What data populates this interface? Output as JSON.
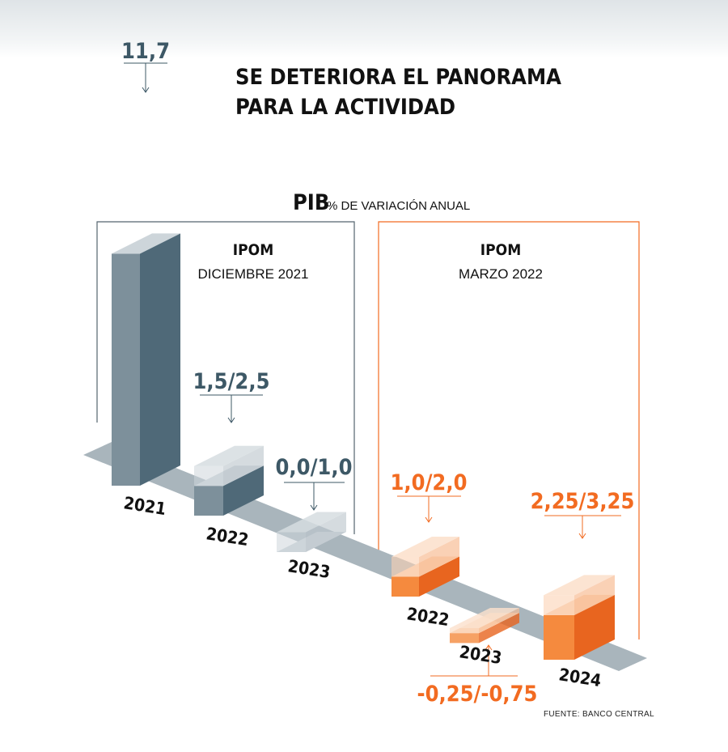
{
  "title_line1": "SE DETERIORA EL PANORAMA",
  "title_line2": "PARA LA ACTIVIDAD",
  "pib_label": "PIB",
  "pib_subtitle": "% DE VARIACIÓN ANUAL",
  "panels": [
    {
      "title": "IPOM",
      "subtitle": "DICIEMBRE 2021",
      "color": "#5a7280"
    },
    {
      "title": "IPOM",
      "subtitle": "MARZO 2022",
      "color": "#f26b21"
    }
  ],
  "source": "FUENTE: BANCO CENTRAL",
  "colors": {
    "grey_dark": "#4f6978",
    "grey_mid": "#7d909b",
    "grey_light": "#cdd5da",
    "orange_dark": "#e8651f",
    "orange_mid": "#f58a3e",
    "orange_light": "#fbd2b4",
    "road": "#a9b5bc",
    "label_grey": "#3d5866",
    "label_orange": "#f26b21"
  },
  "chart_data": {
    "type": "bar",
    "title": "SE DETERIORA EL PANORAMA PARA LA ACTIVIDAD",
    "ylabel": "PIB % DE VARIACIÓN ANUAL",
    "categories": [
      "2021",
      "2022",
      "2023",
      "2022",
      "2023",
      "2024"
    ],
    "bars": [
      {
        "year": "2021",
        "group": "IPOM DICIEMBRE 2021",
        "low": 11.7,
        "high": 11.7,
        "label": "11,7"
      },
      {
        "year": "2022",
        "group": "IPOM DICIEMBRE 2021",
        "low": 1.5,
        "high": 2.5,
        "label": "1,5/2,5"
      },
      {
        "year": "2023",
        "group": "IPOM DICIEMBRE 2021",
        "low": 0.0,
        "high": 1.0,
        "label": "0,0/1,0"
      },
      {
        "year": "2022",
        "group": "IPOM MARZO 2022",
        "low": 1.0,
        "high": 2.0,
        "label": "1,0/2,0"
      },
      {
        "year": "2023",
        "group": "IPOM MARZO 2022",
        "low": -0.75,
        "high": -0.25,
        "label": "-0,25/-0,75"
      },
      {
        "year": "2024",
        "group": "IPOM MARZO 2022",
        "low": 2.25,
        "high": 3.25,
        "label": "2,25/3,25"
      }
    ]
  }
}
